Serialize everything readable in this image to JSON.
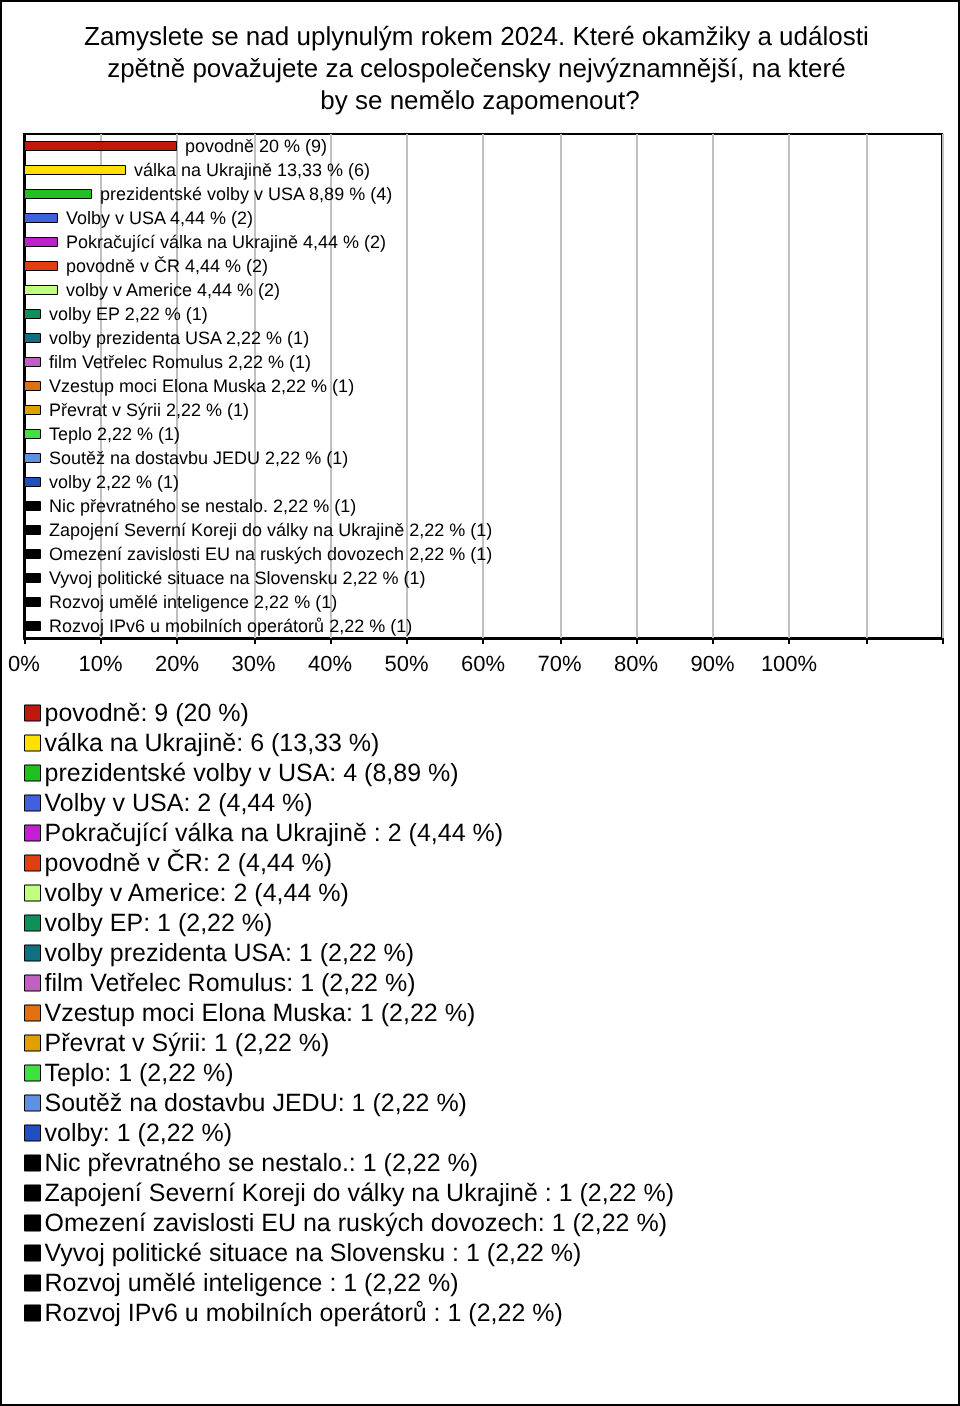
{
  "chart_data": {
    "type": "bar",
    "orientation": "horizontal",
    "stacked": true,
    "title": "Zamyslete se nad uplynulým rokem 2024. Které okamžiky a události zpětně považujete za celospolečensky nejvýznamnější, na které by se nemělo zapomenout?",
    "categories": [
      null,
      null,
      null,
      null,
      null,
      null,
      null,
      null,
      null,
      null,
      null,
      null,
      null,
      null,
      null,
      null,
      null,
      null,
      null,
      null,
      null
    ],
    "series": [
      {
        "name": "povodně: 9 (20 %)",
        "color": "#c0180c",
        "values": [
          20,
          null,
          null,
          null,
          null,
          null,
          null,
          null,
          null,
          null,
          null,
          null,
          null,
          null,
          null,
          null,
          null,
          null,
          null,
          null,
          null
        ],
        "value_labels": [
          "povodně 20 % (9)",
          null,
          null,
          null,
          null,
          null,
          null,
          null,
          null,
          null,
          null,
          null,
          null,
          null,
          null,
          null,
          null,
          null,
          null,
          null,
          null
        ]
      },
      {
        "name": "válka na Ukrajině: 6 (13,33 %)",
        "color": "#ffe000",
        "values": [
          null,
          13.33,
          null,
          null,
          null,
          null,
          null,
          null,
          null,
          null,
          null,
          null,
          null,
          null,
          null,
          null,
          null,
          null,
          null,
          null,
          null
        ],
        "value_labels": [
          null,
          "válka na Ukrajině 13,33 % (6)",
          null,
          null,
          null,
          null,
          null,
          null,
          null,
          null,
          null,
          null,
          null,
          null,
          null,
          null,
          null,
          null,
          null,
          null,
          null
        ]
      },
      {
        "name": "prezidentské volby v USA: 4 (8,89 %)",
        "color": "#20c020",
        "values": [
          null,
          null,
          8.89,
          null,
          null,
          null,
          null,
          null,
          null,
          null,
          null,
          null,
          null,
          null,
          null,
          null,
          null,
          null,
          null,
          null,
          null
        ],
        "value_labels": [
          null,
          null,
          "prezidentské volby v USA 8,89 % (4)",
          null,
          null,
          null,
          null,
          null,
          null,
          null,
          null,
          null,
          null,
          null,
          null,
          null,
          null,
          null,
          null,
          null,
          null
        ]
      },
      {
        "name": "Volby v USA: 2 (4,44 %)",
        "color": "#4060e0",
        "values": [
          null,
          null,
          null,
          4.44,
          null,
          null,
          null,
          null,
          null,
          null,
          null,
          null,
          null,
          null,
          null,
          null,
          null,
          null,
          null,
          null,
          null
        ],
        "value_labels": [
          null,
          null,
          null,
          "Volby v USA 4,44 % (2)",
          null,
          null,
          null,
          null,
          null,
          null,
          null,
          null,
          null,
          null,
          null,
          null,
          null,
          null,
          null,
          null,
          null
        ]
      },
      {
        "name": "Pokračující válka na Ukrajině : 2 (4,44 %)",
        "color": "#c020d0",
        "values": [
          null,
          null,
          null,
          null,
          4.44,
          null,
          null,
          null,
          null,
          null,
          null,
          null,
          null,
          null,
          null,
          null,
          null,
          null,
          null,
          null,
          null
        ],
        "value_labels": [
          null,
          null,
          null,
          null,
          "Pokračující válka na Ukrajině 4,44 % (2)",
          null,
          null,
          null,
          null,
          null,
          null,
          null,
          null,
          null,
          null,
          null,
          null,
          null,
          null,
          null,
          null
        ]
      },
      {
        "name": "povodně v ČR: 2 (4,44 %)",
        "color": "#e04010",
        "values": [
          null,
          null,
          null,
          null,
          null,
          4.44,
          null,
          null,
          null,
          null,
          null,
          null,
          null,
          null,
          null,
          null,
          null,
          null,
          null,
          null,
          null
        ],
        "value_labels": [
          null,
          null,
          null,
          null,
          null,
          "povodně v ČR 4,44 % (2)",
          null,
          null,
          null,
          null,
          null,
          null,
          null,
          null,
          null,
          null,
          null,
          null,
          null,
          null,
          null
        ]
      },
      {
        "name": "volby v Americe: 2 (4,44 %)",
        "color": "#c0ff80",
        "values": [
          null,
          null,
          null,
          null,
          null,
          null,
          4.44,
          null,
          null,
          null,
          null,
          null,
          null,
          null,
          null,
          null,
          null,
          null,
          null,
          null,
          null
        ],
        "value_labels": [
          null,
          null,
          null,
          null,
          null,
          null,
          "volby v Americe 4,44 % (2)",
          null,
          null,
          null,
          null,
          null,
          null,
          null,
          null,
          null,
          null,
          null,
          null,
          null,
          null
        ]
      },
      {
        "name": "volby EP: 1 (2,22 %)",
        "color": "#109058",
        "values": [
          null,
          null,
          null,
          null,
          null,
          null,
          null,
          2.22,
          null,
          null,
          null,
          null,
          null,
          null,
          null,
          null,
          null,
          null,
          null,
          null,
          null
        ],
        "value_labels": [
          null,
          null,
          null,
          null,
          null,
          null,
          null,
          "volby EP 2,22 % (1)",
          null,
          null,
          null,
          null,
          null,
          null,
          null,
          null,
          null,
          null,
          null,
          null,
          null
        ]
      },
      {
        "name": "volby prezidenta USA: 1 (2,22 %)",
        "color": "#107080",
        "values": [
          null,
          null,
          null,
          null,
          null,
          null,
          null,
          null,
          2.22,
          null,
          null,
          null,
          null,
          null,
          null,
          null,
          null,
          null,
          null,
          null,
          null
        ],
        "value_labels": [
          null,
          null,
          null,
          null,
          null,
          null,
          null,
          null,
          "volby prezidenta USA 2,22 % (1)",
          null,
          null,
          null,
          null,
          null,
          null,
          null,
          null,
          null,
          null,
          null,
          null
        ]
      },
      {
        "name": "film Vetřelec Romulus: 1 (2,22 %)",
        "color": "#c060c0",
        "values": [
          null,
          null,
          null,
          null,
          null,
          null,
          null,
          null,
          null,
          2.22,
          null,
          null,
          null,
          null,
          null,
          null,
          null,
          null,
          null,
          null,
          null
        ],
        "value_labels": [
          null,
          null,
          null,
          null,
          null,
          null,
          null,
          null,
          null,
          "film Vetřelec Romulus 2,22 % (1)",
          null,
          null,
          null,
          null,
          null,
          null,
          null,
          null,
          null,
          null,
          null
        ]
      },
      {
        "name": "Vzestup moci Elona Muska: 1 (2,22 %)",
        "color": "#e07010",
        "values": [
          null,
          null,
          null,
          null,
          null,
          null,
          null,
          null,
          null,
          null,
          2.22,
          null,
          null,
          null,
          null,
          null,
          null,
          null,
          null,
          null,
          null
        ],
        "value_labels": [
          null,
          null,
          null,
          null,
          null,
          null,
          null,
          null,
          null,
          null,
          "Vzestup moci Elona Muska 2,22 % (1)",
          null,
          null,
          null,
          null,
          null,
          null,
          null,
          null,
          null,
          null
        ]
      },
      {
        "name": "Převrat v Sýrii: 1 (2,22 %)",
        "color": "#e0a000",
        "values": [
          null,
          null,
          null,
          null,
          null,
          null,
          null,
          null,
          null,
          null,
          null,
          2.22,
          null,
          null,
          null,
          null,
          null,
          null,
          null,
          null,
          null
        ],
        "value_labels": [
          null,
          null,
          null,
          null,
          null,
          null,
          null,
          null,
          null,
          null,
          null,
          "Převrat v Sýrii 2,22 % (1)",
          null,
          null,
          null,
          null,
          null,
          null,
          null,
          null,
          null
        ]
      },
      {
        "name": "Teplo: 1 (2,22 %)",
        "color": "#40e040",
        "values": [
          null,
          null,
          null,
          null,
          null,
          null,
          null,
          null,
          null,
          null,
          null,
          null,
          2.22,
          null,
          null,
          null,
          null,
          null,
          null,
          null,
          null
        ],
        "value_labels": [
          null,
          null,
          null,
          null,
          null,
          null,
          null,
          null,
          null,
          null,
          null,
          null,
          "Teplo 2,22 % (1)",
          null,
          null,
          null,
          null,
          null,
          null,
          null,
          null
        ]
      },
      {
        "name": "Soutěž na dostavbu JEDU: 1 (2,22 %)",
        "color": "#6090e0",
        "values": [
          null,
          null,
          null,
          null,
          null,
          null,
          null,
          null,
          null,
          null,
          null,
          null,
          null,
          2.22,
          null,
          null,
          null,
          null,
          null,
          null,
          null
        ],
        "value_labels": [
          null,
          null,
          null,
          null,
          null,
          null,
          null,
          null,
          null,
          null,
          null,
          null,
          null,
          "Soutěž na dostavbu JEDU 2,22 % (1)",
          null,
          null,
          null,
          null,
          null,
          null,
          null
        ]
      },
      {
        "name": "volby: 1 (2,22 %)",
        "color": "#2050c0",
        "values": [
          null,
          null,
          null,
          null,
          null,
          null,
          null,
          null,
          null,
          null,
          null,
          null,
          null,
          null,
          2.22,
          null,
          null,
          null,
          null,
          null,
          null
        ],
        "value_labels": [
          null,
          null,
          null,
          null,
          null,
          null,
          null,
          null,
          null,
          null,
          null,
          null,
          null,
          null,
          "volby 2,22 % (1)",
          null,
          null,
          null,
          null,
          null,
          null
        ]
      },
      {
        "name": "Nic převratného se nestalo.: 1 (2,22 %)",
        "color": "#000000",
        "values": [
          null,
          null,
          null,
          null,
          null,
          null,
          null,
          null,
          null,
          null,
          null,
          null,
          null,
          null,
          null,
          2.22,
          null,
          null,
          null,
          null,
          null
        ],
        "value_labels": [
          null,
          null,
          null,
          null,
          null,
          null,
          null,
          null,
          null,
          null,
          null,
          null,
          null,
          null,
          null,
          "Nic převratného se nestalo. 2,22 % (1)",
          null,
          null,
          null,
          null,
          null
        ]
      },
      {
        "name": "Zapojení Severní Koreji do války na Ukrajině : 1 (2,22 %)",
        "color": "#000000",
        "values": [
          null,
          null,
          null,
          null,
          null,
          null,
          null,
          null,
          null,
          null,
          null,
          null,
          null,
          null,
          null,
          null,
          2.22,
          null,
          null,
          null,
          null
        ],
        "value_labels": [
          null,
          null,
          null,
          null,
          null,
          null,
          null,
          null,
          null,
          null,
          null,
          null,
          null,
          null,
          null,
          null,
          "Zapojení Severní Koreji do války na Ukrajině 2,22 % (1)",
          null,
          null,
          null,
          null
        ]
      },
      {
        "name": "Omezení zavislosti EU na ruských dovozech: 1 (2,22 %)",
        "color": "#000000",
        "values": [
          null,
          null,
          null,
          null,
          null,
          null,
          null,
          null,
          null,
          null,
          null,
          null,
          null,
          null,
          null,
          null,
          null,
          2.22,
          null,
          null,
          null
        ],
        "value_labels": [
          null,
          null,
          null,
          null,
          null,
          null,
          null,
          null,
          null,
          null,
          null,
          null,
          null,
          null,
          null,
          null,
          null,
          "Omezení zavislosti EU na ruských dovozech 2,22 % (1)",
          null,
          null,
          null
        ]
      },
      {
        "name": "Vyvoj politické situace na Slovensku : 1 (2,22 %)",
        "color": "#000000",
        "values": [
          null,
          null,
          null,
          null,
          null,
          null,
          null,
          null,
          null,
          null,
          null,
          null,
          null,
          null,
          null,
          null,
          null,
          null,
          2.22,
          null,
          null
        ],
        "value_labels": [
          null,
          null,
          null,
          null,
          null,
          null,
          null,
          null,
          null,
          null,
          null,
          null,
          null,
          null,
          null,
          null,
          null,
          null,
          "Vyvoj politické situace na Slovensku 2,22 % (1)",
          null,
          null
        ]
      },
      {
        "name": "Rozvoj umělé inteligence : 1 (2,22 %)",
        "color": "#000000",
        "values": [
          null,
          null,
          null,
          null,
          null,
          null,
          null,
          null,
          null,
          null,
          null,
          null,
          null,
          null,
          null,
          null,
          null,
          null,
          null,
          2.22,
          null
        ],
        "value_labels": [
          null,
          null,
          null,
          null,
          null,
          null,
          null,
          null,
          null,
          null,
          null,
          null,
          null,
          null,
          null,
          null,
          null,
          null,
          null,
          "Rozvoj umělé inteligence 2,22 % (1)",
          null
        ]
      },
      {
        "name": "Rozvoj IPv6 u mobilních operátorů : 1 (2,22 %)",
        "color": "#000000",
        "values": [
          null,
          null,
          null,
          null,
          null,
          null,
          null,
          null,
          null,
          null,
          null,
          null,
          null,
          null,
          null,
          null,
          null,
          null,
          null,
          null,
          2.22
        ],
        "value_labels": [
          null,
          null,
          null,
          null,
          null,
          null,
          null,
          null,
          null,
          null,
          null,
          null,
          null,
          null,
          null,
          null,
          null,
          null,
          null,
          null,
          "Rozvoj IPv6 u mobilních operátorů 2,22 % (1)"
        ]
      }
    ],
    "xlim": [
      0,
      120
    ],
    "xticks": [
      {
        "value": 0,
        "label": "0%"
      },
      {
        "value": 10,
        "label": "10%"
      },
      {
        "value": 20,
        "label": "20%"
      },
      {
        "value": 30,
        "label": "30%"
      },
      {
        "value": 40,
        "label": "40%"
      },
      {
        "value": 50,
        "label": "50%"
      },
      {
        "value": 60,
        "label": "60%"
      },
      {
        "value": 70,
        "label": "70%"
      },
      {
        "value": 80,
        "label": "80%"
      },
      {
        "value": 90,
        "label": "90%"
      },
      {
        "value": 100,
        "label": "100%"
      },
      {
        "value": 110,
        "label": null
      },
      {
        "value": 120,
        "label": null
      }
    ],
    "grid": "x",
    "legend": "bottom",
    "tick_labels": "x"
  }
}
